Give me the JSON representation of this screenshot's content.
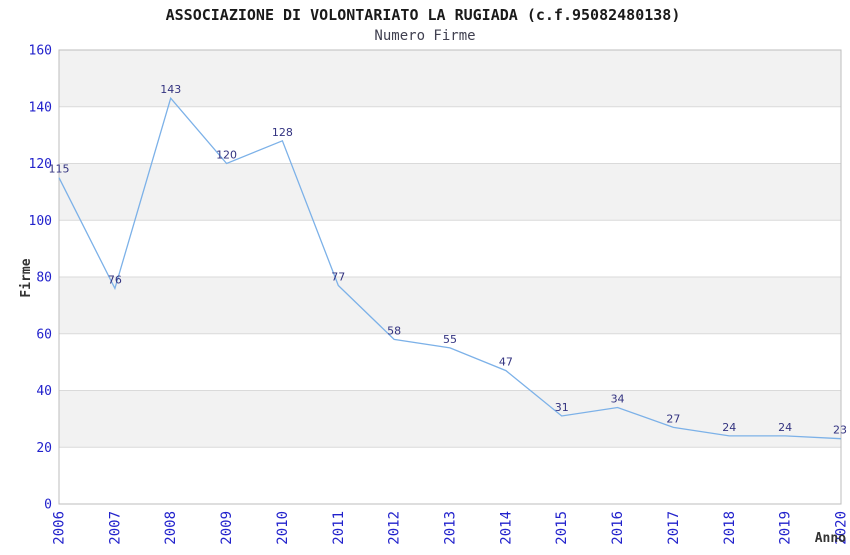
{
  "chart_data": {
    "type": "line",
    "title": "ASSOCIAZIONE DI VOLONTARIATO LA RUGIADA (c.f.95082480138)",
    "subtitle": "Numero Firme",
    "xlabel": "Anno",
    "ylabel": "Firme",
    "categories": [
      "2006",
      "2007",
      "2008",
      "2009",
      "2010",
      "2011",
      "2012",
      "2013",
      "2014",
      "2015",
      "2016",
      "2017",
      "2018",
      "2019",
      "2020"
    ],
    "values": [
      115,
      76,
      143,
      120,
      128,
      77,
      58,
      55,
      47,
      31,
      34,
      27,
      24,
      24,
      23
    ],
    "ylim": [
      0,
      160
    ],
    "ytick_step": 20,
    "yticks": [
      0,
      20,
      40,
      60,
      80,
      100,
      120,
      140,
      160
    ],
    "grid": "horizontal-bands-alternating",
    "legend": "none",
    "data_labels_visible": true,
    "colors": {
      "line": "#7cb1e8",
      "tick_label": "#2222cc",
      "data_label": "#333380",
      "band_alt": "#f2f2f2",
      "band_main": "#ffffff",
      "gridline": "#dadada",
      "plot_border": "#bdbdbd",
      "title": "#1a1a1a",
      "subtitle": "#404050",
      "axis_title": "#333333",
      "background": "#ffffff"
    }
  }
}
